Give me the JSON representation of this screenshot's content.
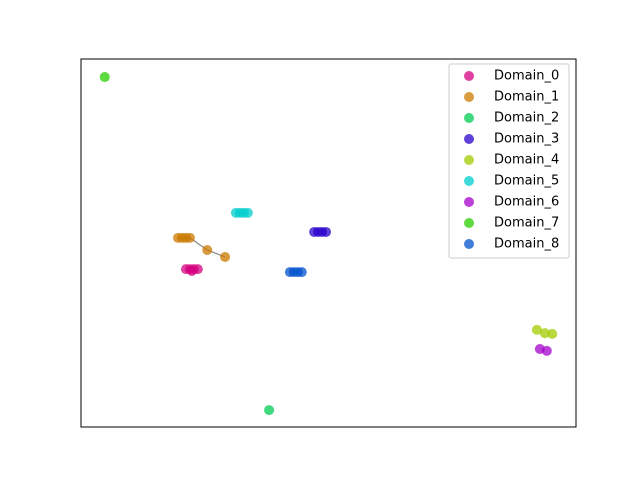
{
  "chart_data": {
    "type": "scatter",
    "xlim": [
      0,
      100
    ],
    "ylim": [
      0,
      100
    ],
    "legend": "upper right",
    "series": [
      {
        "name": "Domain_0",
        "color": "#d6007f",
        "x": [
          21.2,
          22.0,
          22.8,
          23.6,
          22.4
        ],
        "y": [
          42.9,
          42.9,
          42.9,
          42.9,
          42.4
        ]
      },
      {
        "name": "Domain_1",
        "color": "#cc7a00",
        "connected": true,
        "line_color": "#888888",
        "x": [
          19.6,
          20.4,
          21.2,
          22.0,
          25.5,
          29.1
        ],
        "y": [
          51.4,
          51.4,
          51.4,
          51.4,
          48.1,
          46.2
        ]
      },
      {
        "name": "Domain_2",
        "color": "#00cc52",
        "x": [
          38.0
        ],
        "y": [
          4.6
        ]
      },
      {
        "name": "Domain_3",
        "color": "#2a00cc",
        "x": [
          47.1,
          47.9,
          48.7,
          49.5
        ],
        "y": [
          53.0,
          53.0,
          53.0,
          53.0
        ]
      },
      {
        "name": "Domain_4",
        "color": "#a3cc00",
        "x": [
          92.1,
          93.7,
          95.2
        ],
        "y": [
          26.4,
          25.5,
          25.3
        ]
      },
      {
        "name": "Domain_5",
        "color": "#00cccc",
        "x": [
          31.3,
          32.1,
          32.9,
          33.7
        ],
        "y": [
          58.2,
          58.2,
          58.2,
          58.2
        ]
      },
      {
        "name": "Domain_6",
        "color": "#a300cc",
        "x": [
          92.7,
          94.1
        ],
        "y": [
          21.2,
          20.7
        ]
      },
      {
        "name": "Domain_7",
        "color": "#2acc00",
        "x": [
          4.8
        ],
        "y": [
          95.1
        ]
      },
      {
        "name": "Domain_8",
        "color": "#0052cc",
        "x": [
          42.2,
          43.0,
          43.8,
          44.6
        ],
        "y": [
          42.1,
          42.1,
          42.1,
          42.1
        ]
      }
    ]
  }
}
